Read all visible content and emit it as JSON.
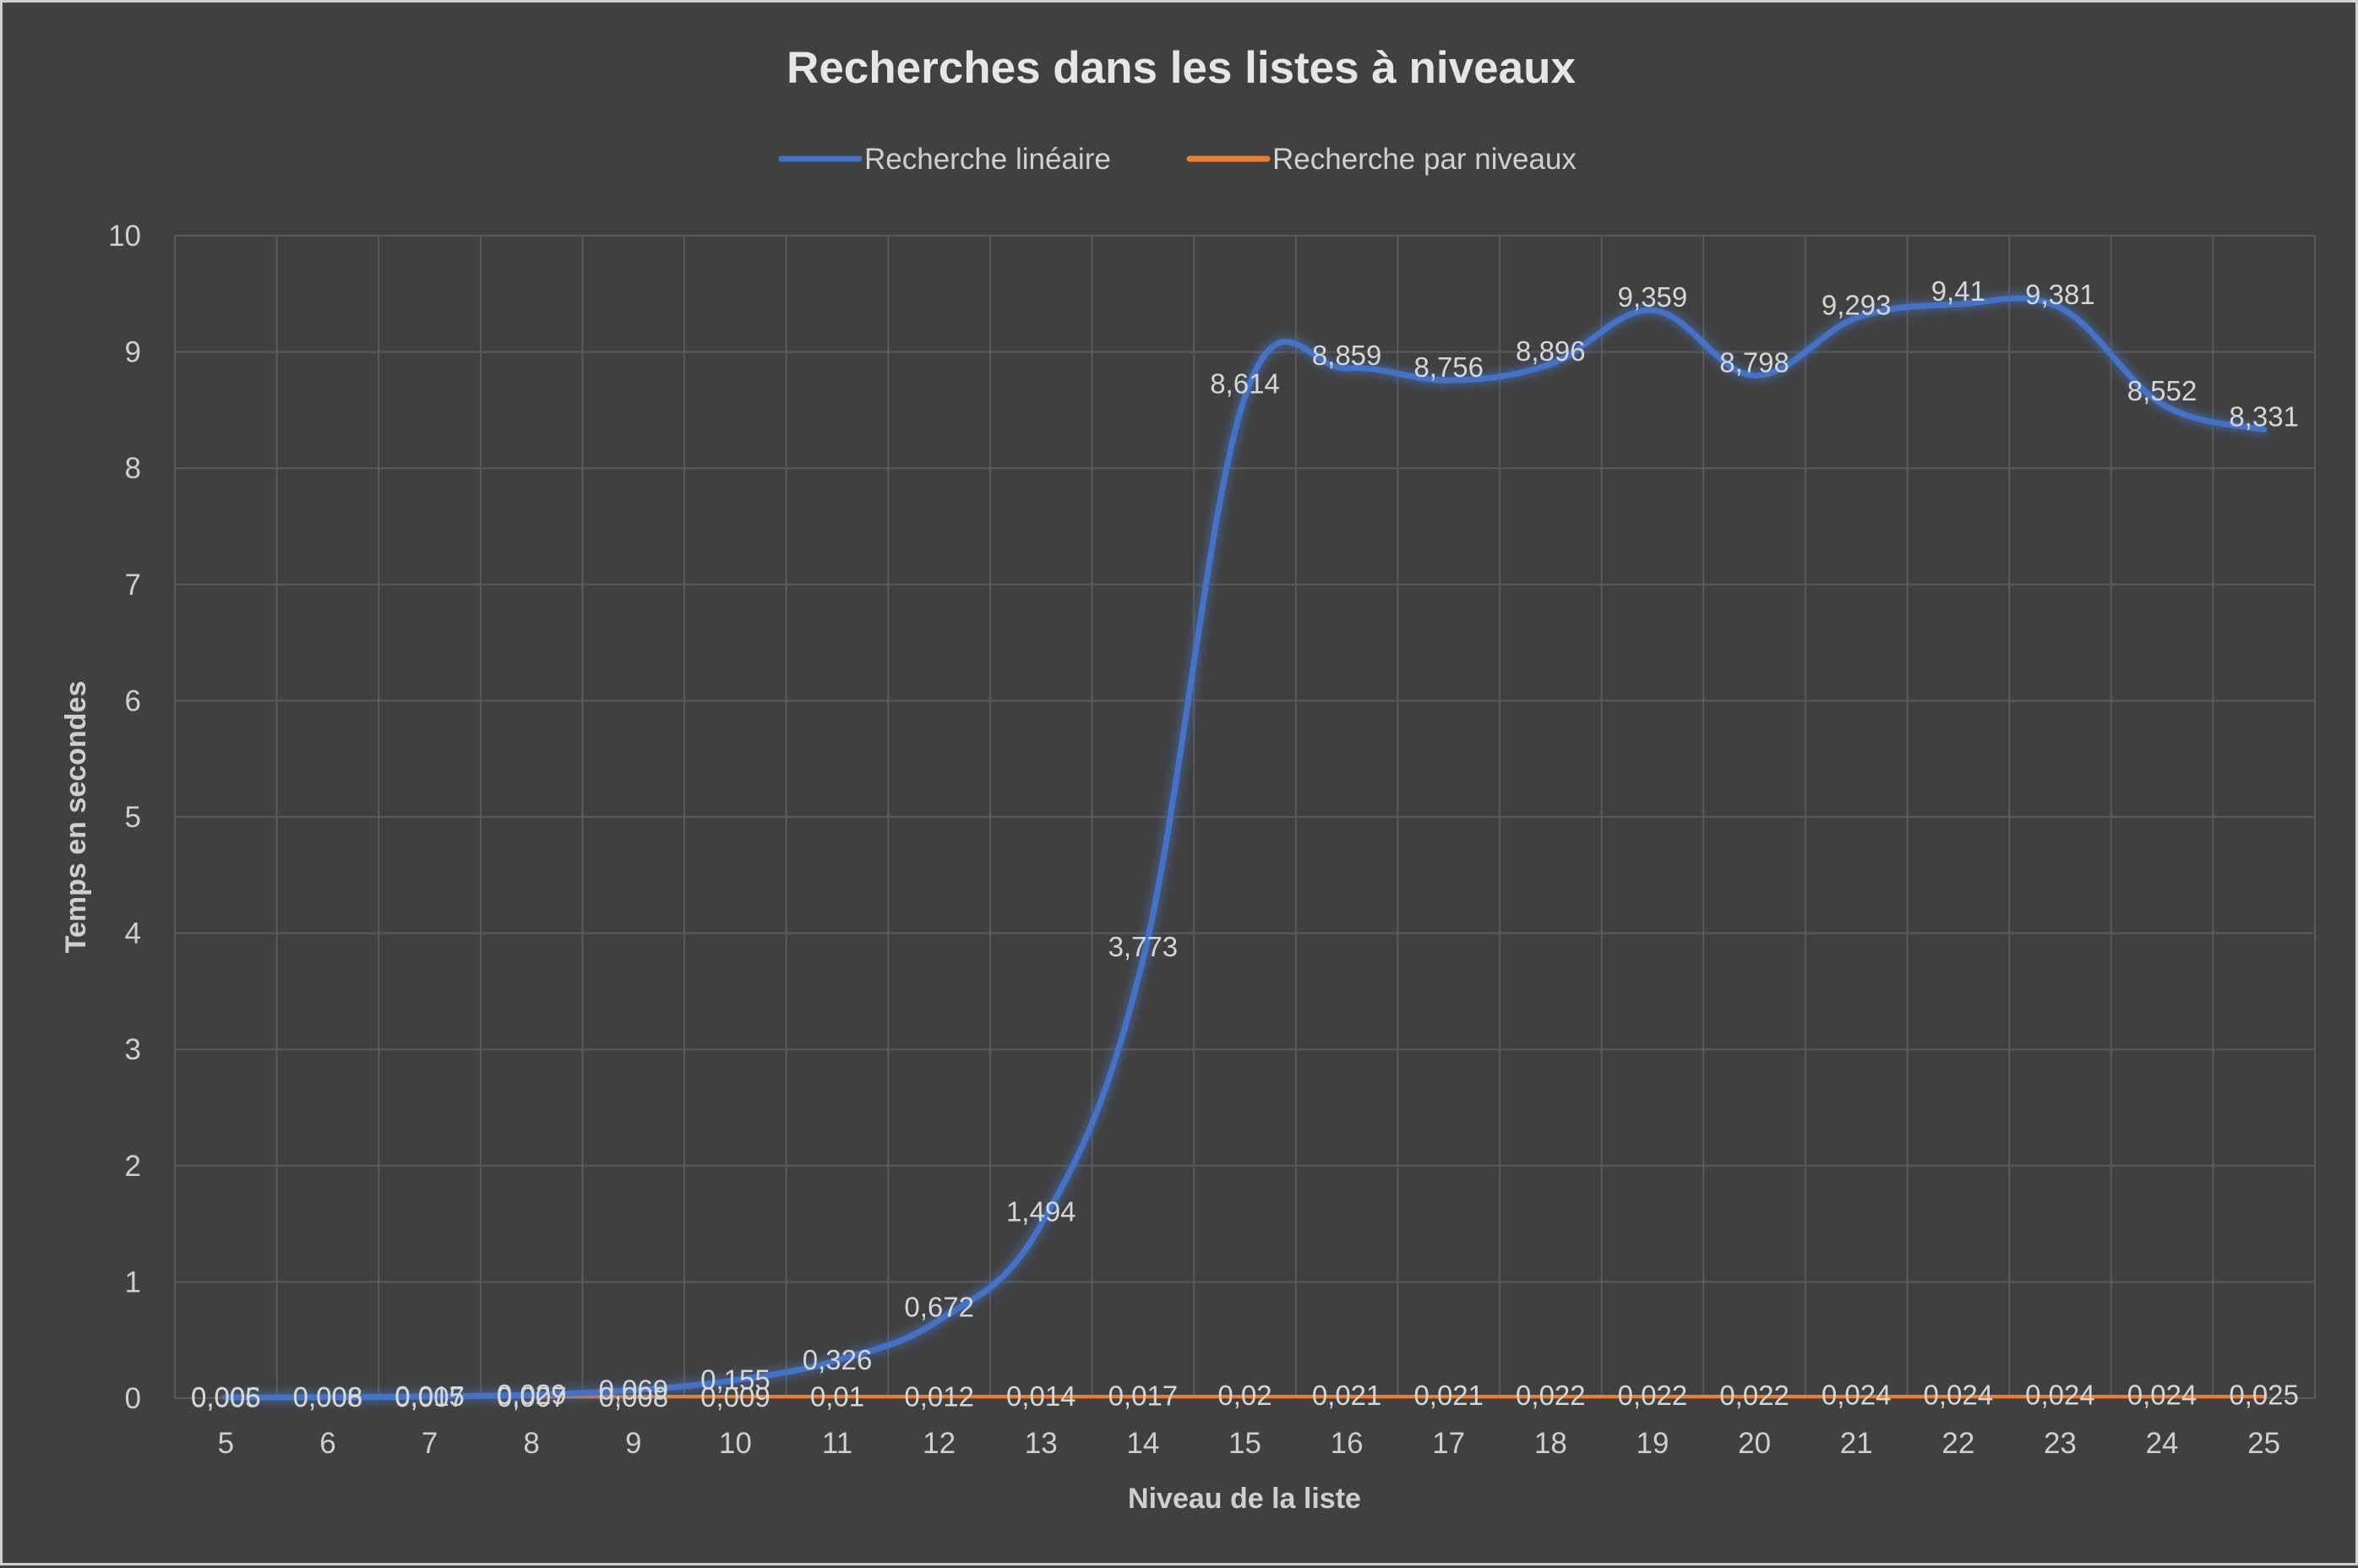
{
  "chart_data": {
    "type": "line",
    "title": "Recherches dans les listes à niveaux",
    "xlabel": "Niveau de la liste",
    "ylabel": "Temps en secondes",
    "categories": [
      "5",
      "6",
      "7",
      "8",
      "9",
      "10",
      "11",
      "12",
      "13",
      "14",
      "15",
      "16",
      "17",
      "18",
      "19",
      "20",
      "21",
      "22",
      "23",
      "24",
      "25"
    ],
    "ylim": [
      0,
      10
    ],
    "yticks": [
      "0",
      "1",
      "2",
      "3",
      "4",
      "5",
      "6",
      "7",
      "8",
      "9",
      "10"
    ],
    "grid": true,
    "legend_position": "top",
    "series": [
      {
        "name": "Recherche linéaire",
        "color": "#4472c4",
        "values": [
          0.006,
          0.008,
          0.015,
          0.029,
          0.069,
          0.155,
          0.326,
          0.672,
          1.494,
          3.773,
          8.614,
          8.859,
          8.756,
          8.896,
          9.359,
          8.798,
          9.293,
          9.41,
          9.381,
          8.552,
          8.331
        ],
        "labels": [
          "0,006",
          "0,008",
          "0,015",
          "0,029",
          "0,069",
          "0,155",
          "0,326",
          "0,672",
          "1,494",
          "3,773",
          "8,614",
          "8,859",
          "8,756",
          "8,896",
          "9,359",
          "8,798",
          "9,293",
          "9,41",
          "9,381",
          "8,552",
          "8,331"
        ]
      },
      {
        "name": "Recherche par niveaux",
        "color": "#ed7d31",
        "values": [
          0.005,
          0.006,
          0.007,
          0.007,
          0.008,
          0.009,
          0.01,
          0.012,
          0.014,
          0.017,
          0.02,
          0.021,
          0.021,
          0.022,
          0.022,
          0.022,
          0.024,
          0.024,
          0.024,
          0.024,
          0.025
        ],
        "labels": [
          "0,005",
          "0,006",
          "0,007",
          "0,007",
          "0,008",
          "0,009",
          "0,01",
          "0,012",
          "0,014",
          "0,017",
          "0,02",
          "0,021",
          "0,021",
          "0,022",
          "0,022",
          "0,022",
          "0,024",
          "0,024",
          "0,024",
          "0,024",
          "0,025"
        ]
      }
    ]
  }
}
